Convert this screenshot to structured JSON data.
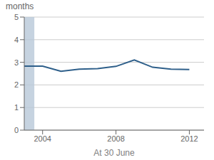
{
  "chart_data": {
    "type": "line",
    "x": [
      2003,
      2004,
      2005,
      2006,
      2007,
      2008,
      2009,
      2010,
      2011,
      2012
    ],
    "values": [
      2.83,
      2.83,
      2.6,
      2.7,
      2.72,
      2.82,
      3.1,
      2.78,
      2.7,
      2.68
    ],
    "color": "#2e5f8a",
    "xlim": [
      2003.0,
      2012.8
    ],
    "xticks": [
      2004,
      2008,
      2012
    ],
    "ylim": [
      0,
      5
    ],
    "yticks": [
      0,
      1,
      2,
      3,
      4,
      5
    ],
    "xlabel": "At 30 June",
    "ylabel": "months",
    "grid": true,
    "shaded_region": {
      "x": [
        2003.0,
        2003.55
      ],
      "color": "#b8c8d8"
    }
  }
}
